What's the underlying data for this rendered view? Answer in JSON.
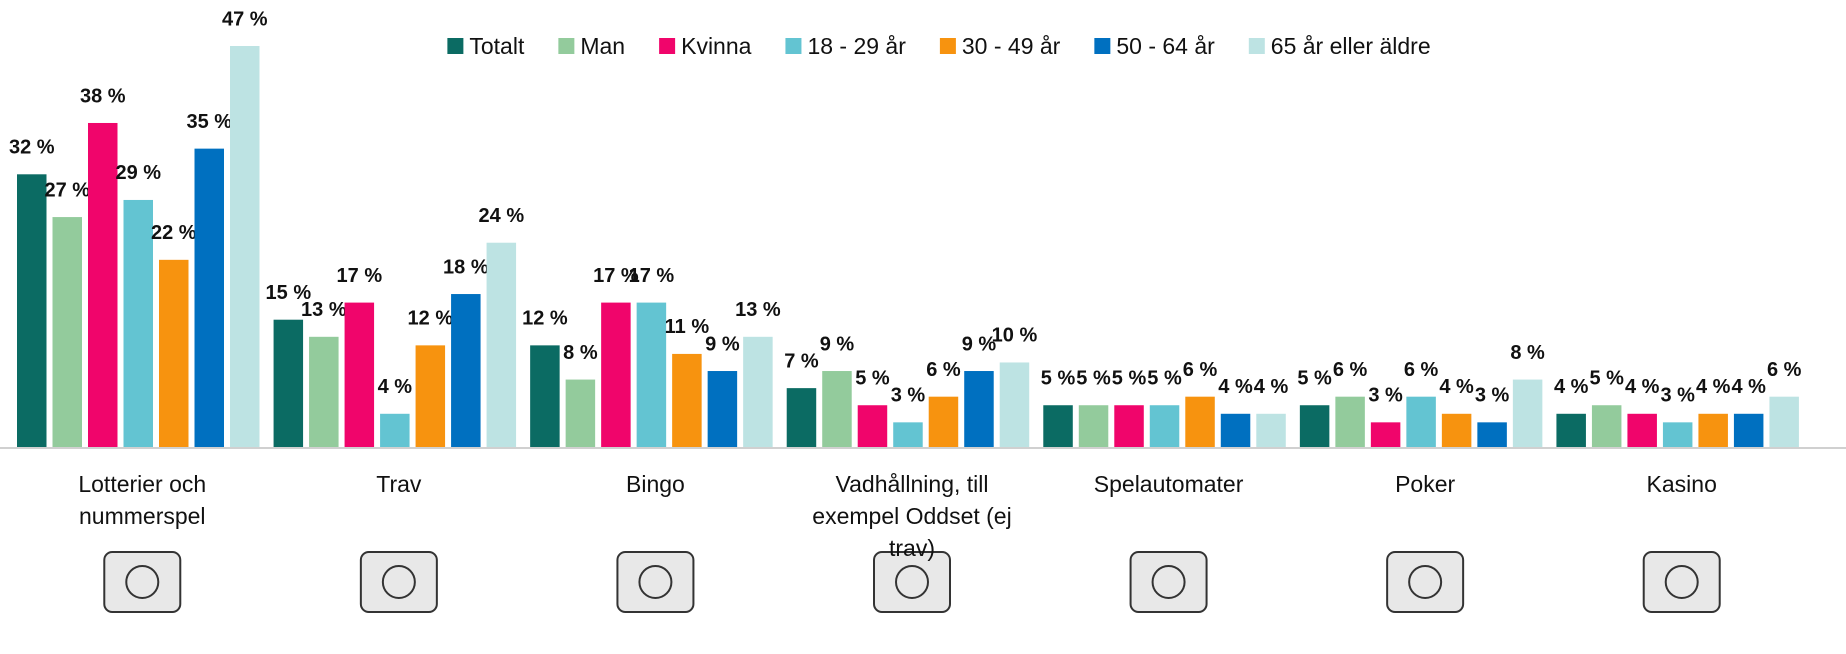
{
  "chart_data": {
    "type": "bar",
    "categories": [
      "Lotterier och nummerspel",
      "Trav",
      "Bingo",
      "Vadhållning, till exempel Oddset (ej trav)",
      "Spelautomater",
      "Poker",
      "Kasino"
    ],
    "series": [
      {
        "name": "Totalt",
        "color": "#0b6b63",
        "values": [
          32,
          15,
          12,
          7,
          5,
          5,
          4
        ],
        "value_labels": [
          "32 %",
          "15 %",
          "12 %",
          "7 %",
          "5 %",
          "5 %",
          "4 %"
        ]
      },
      {
        "name": "Man",
        "color": "#93cb9c",
        "values": [
          27,
          13,
          8,
          9,
          5,
          6,
          5
        ],
        "value_labels": [
          "27 %",
          "13 %",
          "8 %",
          "9 %",
          "5 %",
          "6 %",
          "5 %"
        ]
      },
      {
        "name": "Kvinna",
        "color": "#f0056b",
        "values": [
          38,
          17,
          17,
          5,
          5,
          3,
          4
        ],
        "value_labels": [
          "38 %",
          "17 %",
          "17 %",
          "5 %",
          "5 %",
          "3 %",
          "4 %"
        ]
      },
      {
        "name": "18 - 29 år",
        "color": "#63c4d2",
        "values": [
          29,
          4,
          17,
          3,
          5,
          6,
          3
        ],
        "value_labels": [
          "29 %",
          "4 %",
          "17 %",
          "3 %",
          "5 %",
          "6 %",
          "3 %"
        ]
      },
      {
        "name": "30 - 49 år",
        "color": "#f7930f",
        "values": [
          22,
          12,
          11,
          6,
          6,
          4,
          4
        ],
        "value_labels": [
          "22 %",
          "12 %",
          "11 %",
          "6 %",
          "6 %",
          "4 %",
          "4 %"
        ]
      },
      {
        "name": "50 - 64 år",
        "color": "#0070c0",
        "values": [
          35,
          18,
          9,
          9,
          4,
          3,
          4
        ],
        "value_labels": [
          "35 %",
          "18 %",
          "9 %",
          "9 %",
          "4 %",
          "3 %",
          "4 %"
        ]
      },
      {
        "name": "65 år eller äldre",
        "color": "#bde3e3",
        "values": [
          47,
          24,
          13,
          10,
          4,
          8,
          6
        ],
        "value_labels": [
          "47 %",
          "24 %",
          "13 %",
          "10 %",
          "4 %",
          "8 %",
          "6 %"
        ]
      }
    ]
  }
}
